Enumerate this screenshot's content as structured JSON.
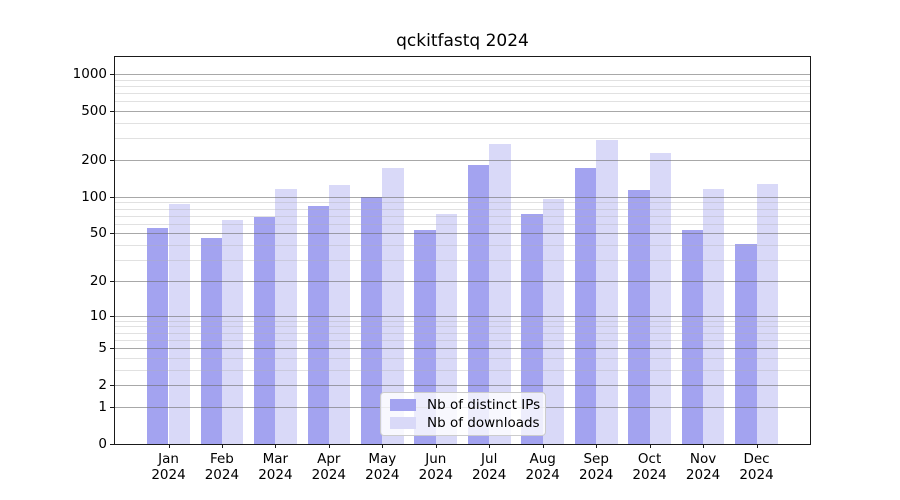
{
  "chart_data": {
    "type": "bar",
    "title": "qckitfastq 2024",
    "categories": [
      "Jan",
      "Feb",
      "Mar",
      "Apr",
      "May",
      "Jun",
      "Jul",
      "Aug",
      "Sep",
      "Oct",
      "Nov",
      "Dec"
    ],
    "x_year_label": "2024",
    "series": [
      {
        "name": "Nb of distinct IPs",
        "color": "#a3a3f0",
        "values": [
          55,
          46,
          69,
          84,
          100,
          53,
          182,
          73,
          172,
          114,
          53,
          41
        ]
      },
      {
        "name": "Nb of downloads",
        "color": "#d9d9f8",
        "values": [
          87,
          65,
          117,
          125,
          173,
          72,
          271,
          97,
          291,
          228,
          115,
          127
        ]
      }
    ],
    "xlabel": "",
    "ylabel": "",
    "y_scale": "log1p",
    "ylim": [
      0,
      1374
    ],
    "y_ticks": [
      0,
      1,
      2,
      5,
      10,
      20,
      50,
      100,
      200,
      500,
      1000
    ],
    "y_minor_ticks": [
      3,
      4,
      6,
      7,
      8,
      9,
      30,
      40,
      60,
      70,
      80,
      90,
      300,
      400,
      600,
      700,
      800,
      900
    ],
    "grid": true,
    "grid_on_top_of_bars": true,
    "legend_position": "lower center",
    "style": {
      "grid_color": "#b0b0b0",
      "spine_color": "#1a1a1a",
      "text_color": "#000000",
      "legend_bg": "rgba(255,255,255,0.8)",
      "legend_border": "#cccccc",
      "background": "#ffffff"
    }
  }
}
